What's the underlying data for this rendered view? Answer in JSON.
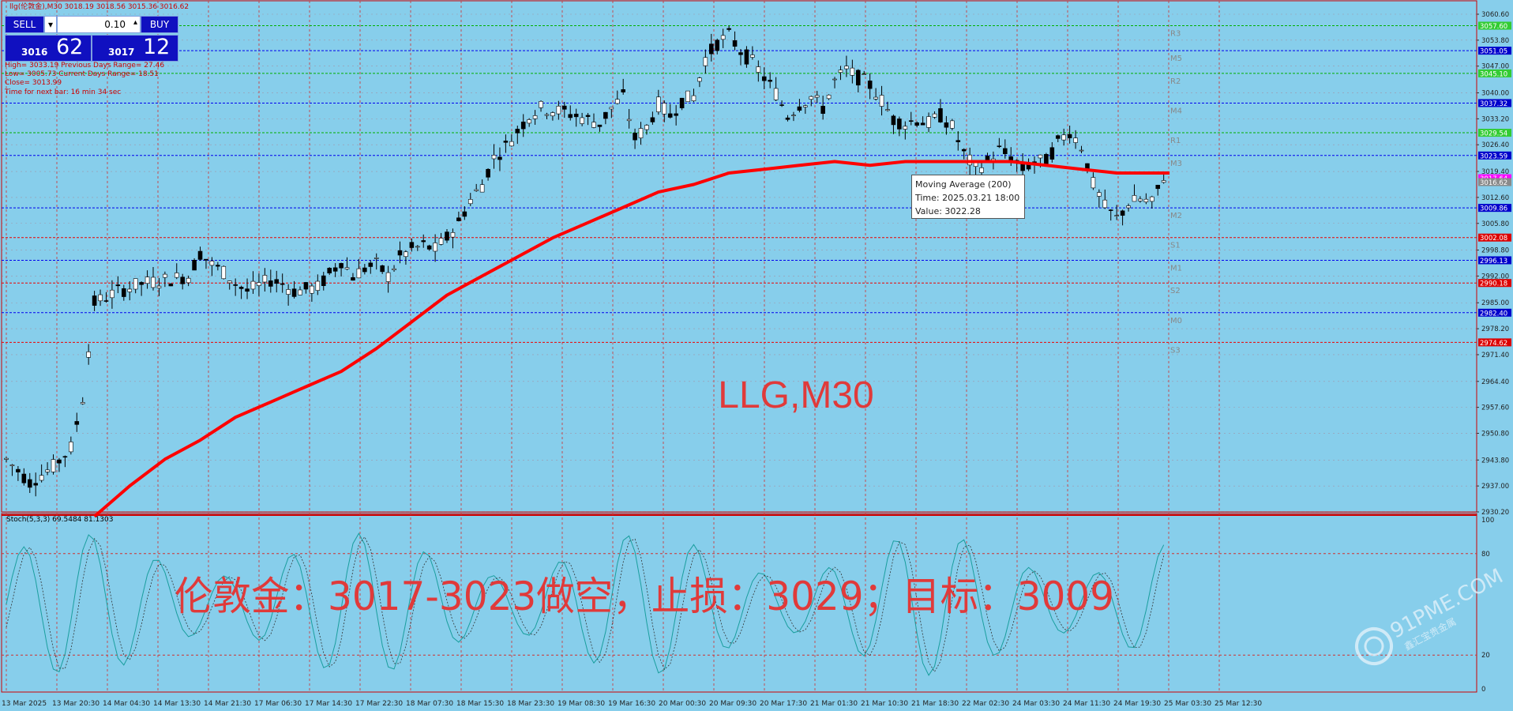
{
  "header": {
    "title": "llg(伦敦金),M30  3018.19 3018.56 3015.36 3016.62",
    "sell_label": "SELL",
    "buy_label": "BUY",
    "lot": "0.10",
    "sell_price_small": "3016",
    "sell_price_big": "62",
    "buy_price_small": "3017",
    "buy_price_big": "12",
    "info_lines": [
      "High= 3033.19    Previous Days Range= 27.46",
      "Low= 3005.73    Current Days Range= 18.51",
      "Close= 3013.99",
      "Time for next bar: 16 min 34 sec"
    ]
  },
  "colors": {
    "background": "#87CEEB",
    "candle_up": "#000000",
    "candle_down": "#000000",
    "ma_line": "#ff0000",
    "watermark_text": "#e03a3a",
    "blue_level": "#0000ee",
    "red_level": "#ee0000",
    "green_level": "#00b000"
  },
  "tooltip": {
    "line1": "Moving Average (200)",
    "line2": "Time: 2025.03.21 18:00",
    "line3": "Value: 3022.28"
  },
  "chart_data": {
    "type": "candlestick",
    "symbol": "LLG,M30",
    "main_ylim": [
      2930.2,
      3060.6
    ],
    "y_ticks": [
      "3060.60",
      "3053.80",
      "3047.00",
      "3040.00",
      "3033.20",
      "3026.40",
      "3019.40",
      "3012.60",
      "3005.80",
      "2998.80",
      "2992.00",
      "2985.00",
      "2978.20",
      "2971.40",
      "2964.40",
      "2957.60",
      "2950.80",
      "2943.80",
      "2937.00",
      "2930.20"
    ],
    "x_labels": [
      "13 Mar 2025",
      "13 Mar 20:30",
      "14 Mar 04:30",
      "14 Mar 13:30",
      "14 Mar 21:30",
      "17 Mar 06:30",
      "17 Mar 14:30",
      "17 Mar 22:30",
      "18 Mar 07:30",
      "18 Mar 15:30",
      "18 Mar 23:30",
      "19 Mar 08:30",
      "19 Mar 16:30",
      "20 Mar 00:30",
      "20 Mar 09:30",
      "20 Mar 17:30",
      "21 Mar 01:30",
      "21 Mar 10:30",
      "21 Mar 18:30",
      "22 Mar 02:30",
      "24 Mar 03:30",
      "24 Mar 11:30",
      "24 Mar 19:30",
      "25 Mar 03:30",
      "25 Mar 12:30"
    ],
    "close_path": [
      [
        0,
        2944
      ],
      [
        4,
        2938
      ],
      [
        8,
        2942
      ],
      [
        11,
        2947
      ],
      [
        13,
        2960
      ],
      [
        15,
        2985
      ],
      [
        19,
        2988
      ],
      [
        23,
        2990
      ],
      [
        27,
        2991
      ],
      [
        31,
        2992
      ],
      [
        33,
        2998
      ],
      [
        35,
        2995
      ],
      [
        37,
        2993
      ],
      [
        39,
        2990
      ],
      [
        41,
        2988
      ],
      [
        45,
        2991
      ],
      [
        47,
        2990
      ],
      [
        49,
        2988
      ],
      [
        53,
        2989
      ],
      [
        57,
        2996
      ],
      [
        59,
        2992
      ],
      [
        61,
        2994
      ],
      [
        63,
        2995
      ],
      [
        65,
        2992
      ],
      [
        67,
        2997
      ],
      [
        69,
        2999
      ],
      [
        71,
        3000
      ],
      [
        73,
        2999
      ],
      [
        75,
        3002
      ],
      [
        77,
        3006
      ],
      [
        79,
        3012
      ],
      [
        81,
        3016
      ],
      [
        83,
        3023
      ],
      [
        85,
        3026
      ],
      [
        87,
        3030
      ],
      [
        89,
        3034
      ],
      [
        91,
        3036
      ],
      [
        95,
        3035
      ],
      [
        99,
        3033
      ],
      [
        101,
        3032
      ],
      [
        103,
        3036
      ],
      [
        105,
        3039
      ],
      [
        107,
        3028
      ],
      [
        109,
        3031
      ],
      [
        111,
        3037
      ],
      [
        113,
        3034
      ],
      [
        115,
        3038
      ],
      [
        117,
        3039
      ],
      [
        119,
        3049
      ],
      [
        121,
        3053
      ],
      [
        123,
        3055
      ],
      [
        125,
        3051
      ],
      [
        127,
        3048
      ],
      [
        129,
        3044
      ],
      [
        131,
        3040
      ],
      [
        133,
        3034
      ],
      [
        135,
        3037
      ],
      [
        137,
        3039
      ],
      [
        139,
        3036
      ],
      [
        141,
        3043
      ],
      [
        143,
        3046
      ],
      [
        145,
        3044
      ],
      [
        147,
        3042
      ],
      [
        149,
        3038
      ],
      [
        151,
        3033
      ],
      [
        153,
        3032
      ],
      [
        155,
        3033
      ],
      [
        157,
        3032
      ],
      [
        159,
        3034
      ],
      [
        161,
        3031
      ],
      [
        163,
        3024
      ],
      [
        165,
        3020
      ],
      [
        167,
        3022
      ],
      [
        169,
        3025
      ],
      [
        171,
        3023
      ],
      [
        173,
        3020
      ],
      [
        175,
        3022
      ],
      [
        177,
        3022
      ],
      [
        179,
        3027
      ],
      [
        181,
        3030
      ],
      [
        183,
        3026
      ],
      [
        185,
        3016
      ],
      [
        187,
        3010
      ],
      [
        189,
        3007
      ],
      [
        191,
        3011
      ],
      [
        193,
        3012
      ],
      [
        195,
        3011
      ],
      [
        197,
        3018
      ]
    ],
    "ma200_path": [
      [
        15,
        2929
      ],
      [
        21,
        2937
      ],
      [
        27,
        2944
      ],
      [
        33,
        2949
      ],
      [
        39,
        2955
      ],
      [
        45,
        2959
      ],
      [
        51,
        2963
      ],
      [
        57,
        2967
      ],
      [
        63,
        2973
      ],
      [
        69,
        2980
      ],
      [
        75,
        2987
      ],
      [
        81,
        2992
      ],
      [
        87,
        2997
      ],
      [
        93,
        3002
      ],
      [
        99,
        3006
      ],
      [
        105,
        3010
      ],
      [
        111,
        3014
      ],
      [
        117,
        3016
      ],
      [
        123,
        3019
      ],
      [
        129,
        3020
      ],
      [
        135,
        3021
      ],
      [
        141,
        3022
      ],
      [
        147,
        3021
      ],
      [
        153,
        3022
      ],
      [
        159,
        3022
      ],
      [
        165,
        3022
      ],
      [
        171,
        3022
      ],
      [
        177,
        3021
      ],
      [
        183,
        3020
      ],
      [
        189,
        3019
      ],
      [
        195,
        3019
      ],
      [
        198,
        3019
      ]
    ],
    "levels": [
      {
        "label": "R3",
        "value": 3057.6,
        "color": "green",
        "tag": "3057.60"
      },
      {
        "label": "M5",
        "value": 3051.05,
        "color": "blue",
        "tag": "3051.05"
      },
      {
        "label": "R2",
        "value": 3045.1,
        "color": "green",
        "tag": "3045.10"
      },
      {
        "label": "M4",
        "value": 3037.32,
        "color": "blue",
        "tag": "3037.32"
      },
      {
        "label": "R1",
        "value": 3029.54,
        "color": "green",
        "tag": "3029.54"
      },
      {
        "label": "M3",
        "value": 3023.59,
        "color": "blue",
        "tag": "3023.59"
      },
      {
        "label": "",
        "value": 3017.64,
        "color": "magenta",
        "tag": "3017.64"
      },
      {
        "label": "",
        "value": 3016.62,
        "color": "dim",
        "tag": "3016.62"
      },
      {
        "label": "M2",
        "value": 3009.86,
        "color": "blue",
        "tag": "3009.86"
      },
      {
        "label": "S1",
        "value": 3002.08,
        "color": "red",
        "tag": "3002.08"
      },
      {
        "label": "M1",
        "value": 2996.13,
        "color": "blue",
        "tag": "2996.13"
      },
      {
        "label": "S2",
        "value": 2990.18,
        "color": "red",
        "tag": "2990.18"
      },
      {
        "label": "M0",
        "value": 2982.4,
        "color": "blue",
        "tag": "2982.40"
      },
      {
        "label": "S3",
        "value": 2974.62,
        "color": "red",
        "tag": "2974.62"
      }
    ],
    "stoch": {
      "label": "Stoch(5,3,3) 69.5484 81.1303",
      "ylim": [
        0,
        100
      ],
      "y_ticks": [
        "100",
        "80",
        "20",
        "0"
      ],
      "levels": [
        80,
        20
      ]
    },
    "watermark_symbol": "LLG,M30",
    "signal_text": "伦敦金：3017-3023做空，止损：3029；目标：3009",
    "brand_text": "91PME.COM",
    "brand_sub": "鑫汇宝贵金属"
  }
}
